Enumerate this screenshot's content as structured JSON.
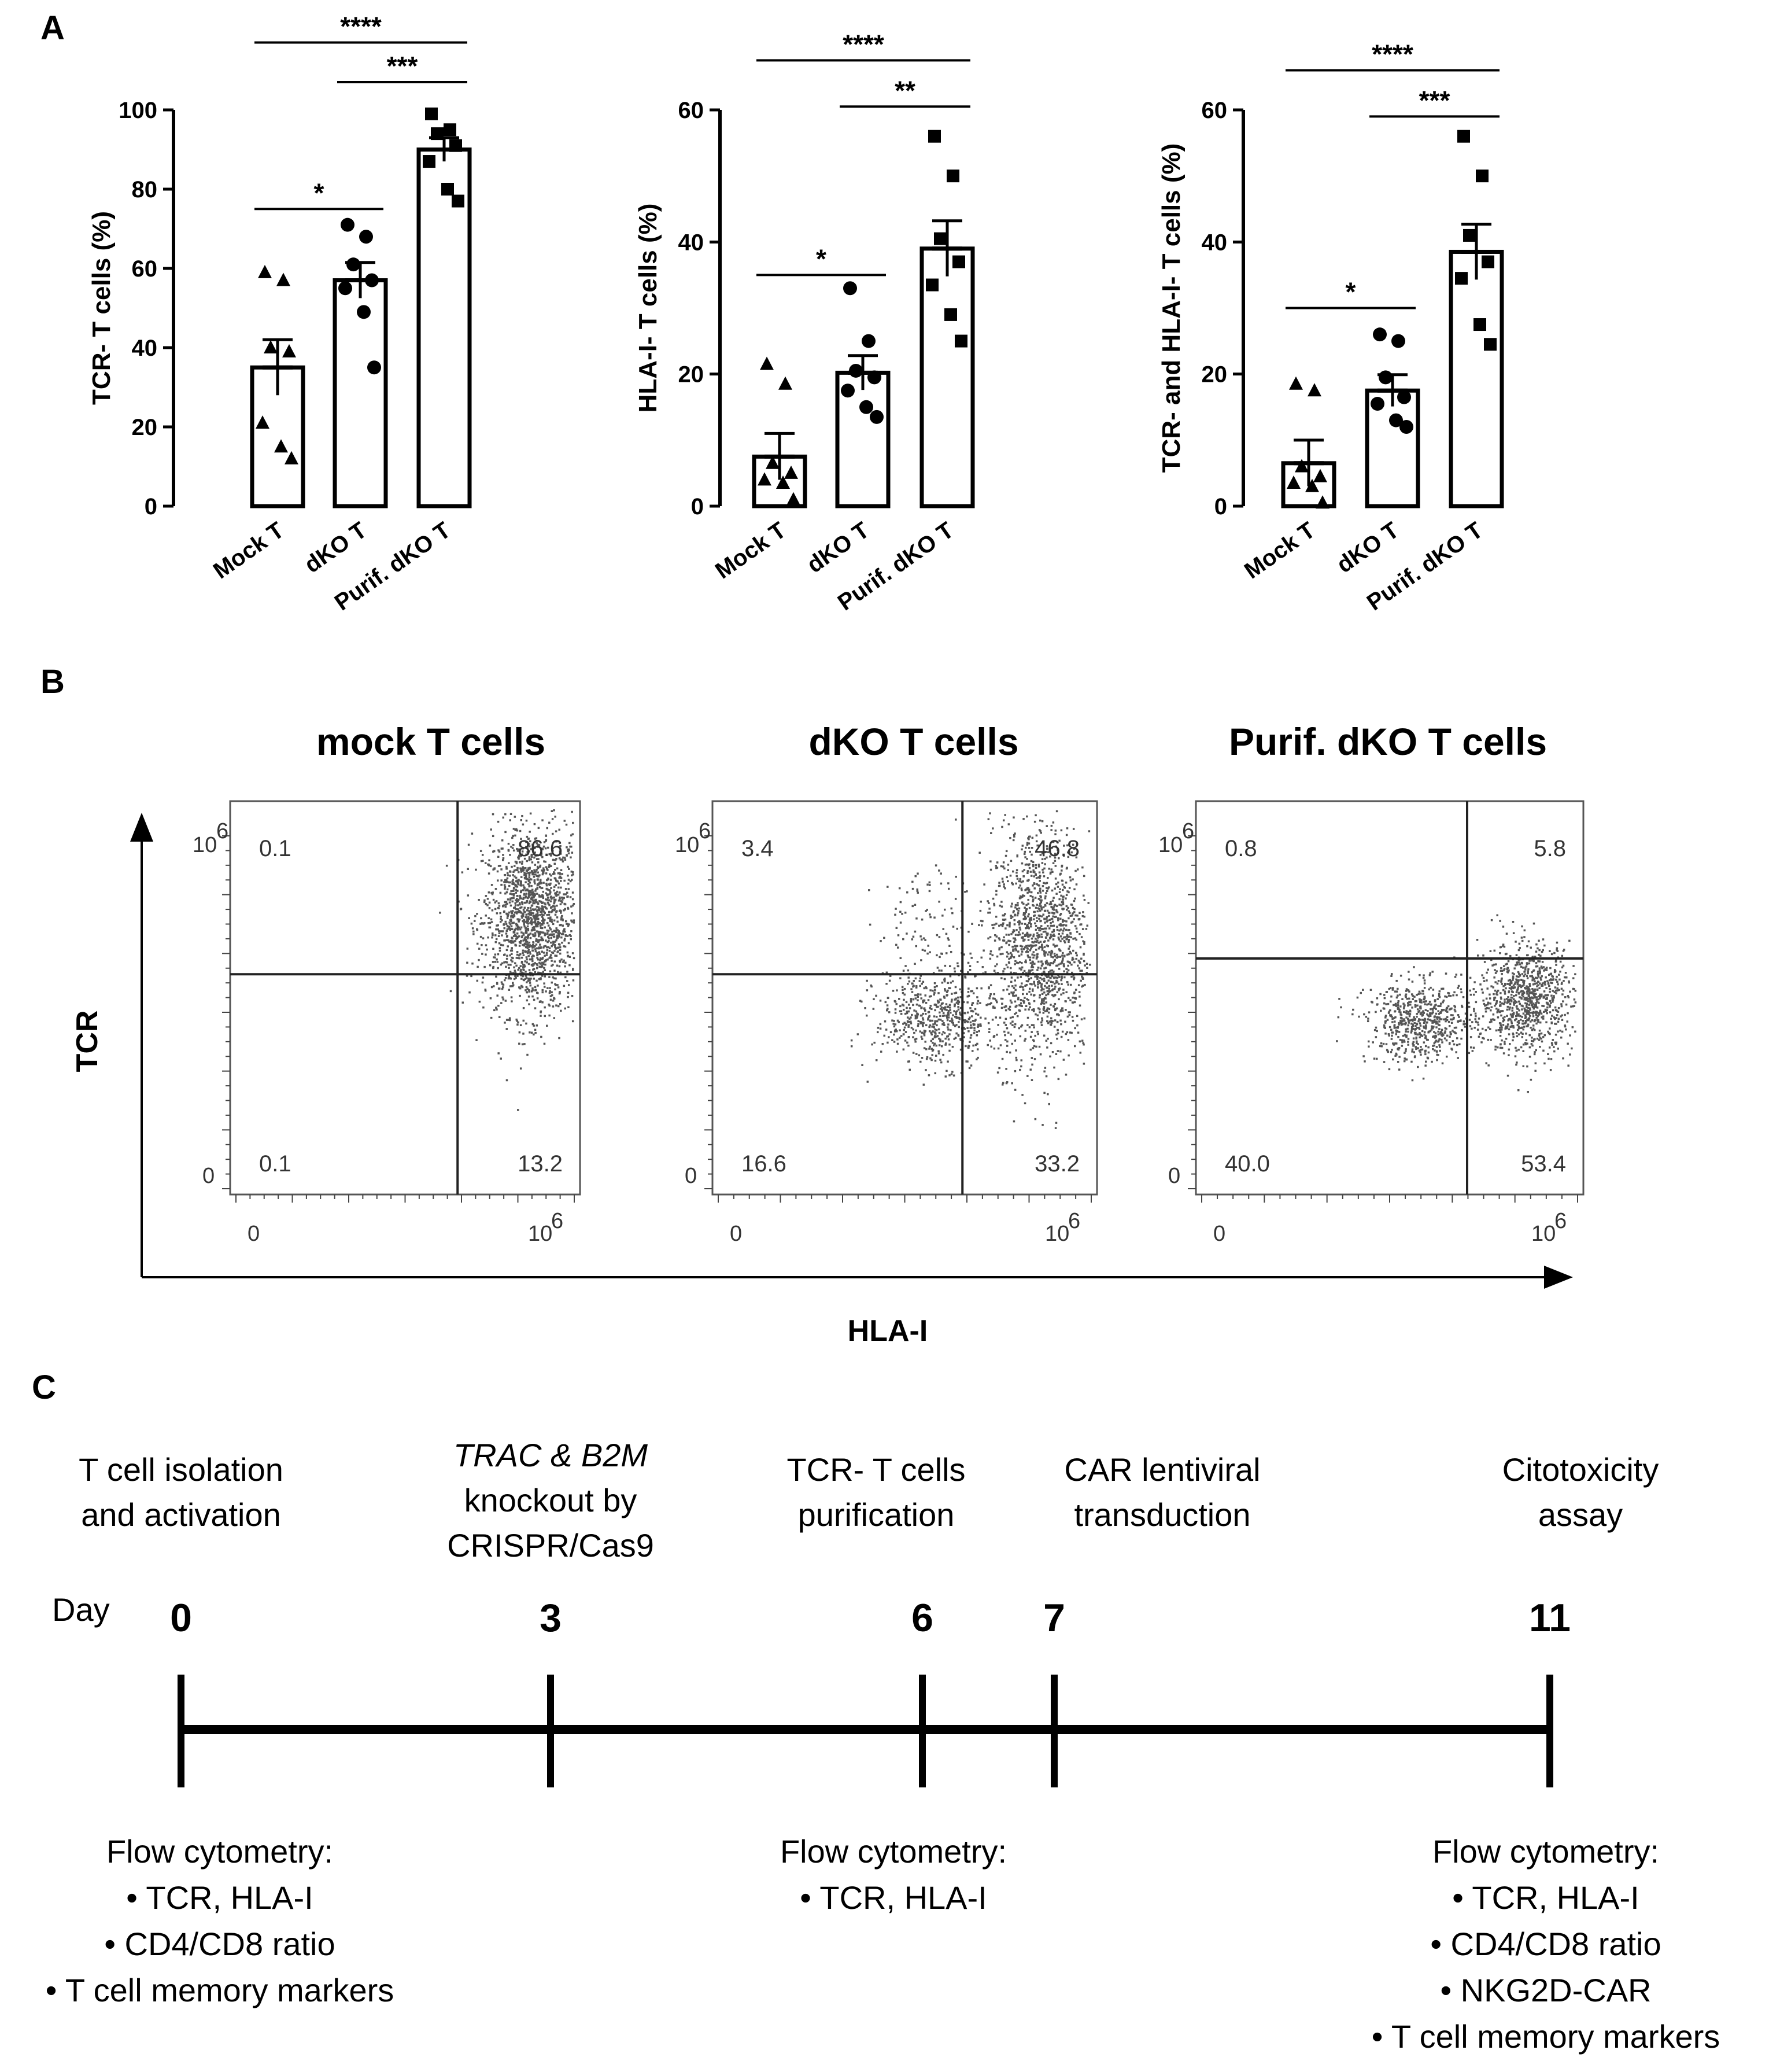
{
  "panels": {
    "A": "A",
    "B": "B",
    "C": "C"
  },
  "chart_data": [
    {
      "type": "bar",
      "title": "",
      "ylabel": "TCR-  T cells (%)",
      "ylim": [
        0,
        100
      ],
      "yticks": [
        0,
        20,
        40,
        60,
        80,
        100
      ],
      "categories": [
        "Mock T",
        "dKO T",
        "Purif. dKO T"
      ],
      "values": [
        35,
        57,
        90
      ],
      "errors": [
        7,
        4.5,
        3
      ],
      "markers": [
        "triangle",
        "circle",
        "square"
      ],
      "points": [
        [
          59,
          57,
          40,
          39,
          21,
          15,
          12
        ],
        [
          71,
          68,
          61,
          57,
          55,
          49,
          35
        ],
        [
          99,
          95,
          94,
          91,
          87,
          80,
          77
        ]
      ],
      "significance": [
        {
          "from": 0,
          "to": 2,
          "label": "****",
          "y": 117
        },
        {
          "from": 1,
          "to": 2,
          "label": "***",
          "y": 107
        },
        {
          "from": 0,
          "to": 1,
          "label": "*",
          "y": 75
        }
      ]
    },
    {
      "type": "bar",
      "title": "",
      "ylabel": "HLA-I- T cells (%)",
      "ylim": [
        0,
        60
      ],
      "yticks": [
        0,
        20,
        40,
        60
      ],
      "categories": [
        "Mock T",
        "dKO T",
        "Purif. dKO T"
      ],
      "values": [
        7.5,
        20.2,
        39
      ],
      "errors": [
        3.5,
        2.6,
        4.2
      ],
      "markers": [
        "triangle",
        "circle",
        "square"
      ],
      "points": [
        [
          21.5,
          18.5,
          6.5,
          5,
          4,
          3.5,
          1
        ],
        [
          33,
          25,
          20.5,
          19.5,
          17.5,
          15,
          13.5
        ],
        [
          56,
          50,
          40.5,
          37,
          33.5,
          29,
          25
        ]
      ],
      "significance": [
        {
          "from": 0,
          "to": 2,
          "label": "****",
          "y": 67.5
        },
        {
          "from": 1,
          "to": 2,
          "label": "**",
          "y": 60.5
        },
        {
          "from": 0,
          "to": 1,
          "label": "*",
          "y": 35
        }
      ]
    },
    {
      "type": "bar",
      "title": "",
      "ylabel": "TCR- and HLA-I- T cells (%)",
      "ylim": [
        0,
        60
      ],
      "yticks": [
        0,
        20,
        40,
        60
      ],
      "categories": [
        "Mock T",
        "dKO T",
        "Purif. dKO T"
      ],
      "values": [
        6.5,
        17.5,
        38.5
      ],
      "errors": [
        3.5,
        2.4,
        4.2
      ],
      "markers": [
        "triangle",
        "circle",
        "square"
      ],
      "points": [
        [
          18.5,
          17.5,
          6,
          4.5,
          3.5,
          3,
          0.5
        ],
        [
          26,
          25,
          19.5,
          16.5,
          15.5,
          13,
          12
        ],
        [
          56,
          50,
          41,
          37,
          34.5,
          27.5,
          24.5
        ]
      ],
      "significance": [
        {
          "from": 0,
          "to": 2,
          "label": "****",
          "y": 66
        },
        {
          "from": 1,
          "to": 2,
          "label": "***",
          "y": 59
        },
        {
          "from": 0,
          "to": 1,
          "label": "*",
          "y": 30
        }
      ]
    }
  ],
  "flow": {
    "y_axis": "TCR",
    "x_axis": "HLA-I",
    "tick_zero": "0",
    "tick_max": "10",
    "tick_max_exp": "6",
    "plots": [
      {
        "title": "mock T cells",
        "q_ul": "0.1",
        "q_ur": "86.6",
        "q_ll": "0.1",
        "q_lr": "13.2",
        "gate_x": 0.65,
        "gate_y": 0.56,
        "clusters": [
          {
            "cx": 0.86,
            "cy": 0.7,
            "sx": 0.07,
            "sy": 0.12,
            "n": 1700
          }
        ]
      },
      {
        "title": "dKO T cells",
        "q_ul": "3.4",
        "q_ur": "46.8",
        "q_ll": "16.6",
        "q_lr": "33.2",
        "gate_x": 0.65,
        "gate_y": 0.56,
        "clusters": [
          {
            "cx": 0.85,
            "cy": 0.64,
            "sx": 0.065,
            "sy": 0.15,
            "n": 1400
          },
          {
            "cx": 0.58,
            "cy": 0.45,
            "sx": 0.08,
            "sy": 0.06,
            "n": 600
          },
          {
            "cx": 0.58,
            "cy": 0.68,
            "sx": 0.08,
            "sy": 0.08,
            "n": 120
          }
        ]
      },
      {
        "title": "Purif. dKO T cells",
        "q_ul": "0.8",
        "q_ur": "5.8",
        "q_ll": "40.0",
        "q_lr": "53.4",
        "gate_x": 0.7,
        "gate_y": 0.6,
        "clusters": [
          {
            "cx": 0.85,
            "cy": 0.5,
            "sx": 0.06,
            "sy": 0.07,
            "n": 900
          },
          {
            "cx": 0.58,
            "cy": 0.44,
            "sx": 0.07,
            "sy": 0.05,
            "n": 650
          }
        ]
      }
    ]
  },
  "timeline": {
    "day_label": "Day",
    "events": [
      {
        "day": "0",
        "top": [
          "T cell isolation",
          "and activation"
        ],
        "bottom": [
          "Flow cytometry:",
          "• TCR, HLA-I",
          "• CD4/CD8 ratio",
          "• T cell memory markers"
        ]
      },
      {
        "day": "3",
        "top_italic": "TRAC & B2M",
        "top": [
          "knockout by",
          "CRISPR/Cas9"
        ],
        "bottom": []
      },
      {
        "day": "6",
        "top": [
          "TCR- T cells",
          "purification"
        ],
        "bottom": [
          "Flow cytometry:",
          "• TCR, HLA-I"
        ]
      },
      {
        "day": "7",
        "top": [
          "CAR lentiviral",
          "transduction"
        ],
        "bottom": []
      },
      {
        "day": "11",
        "top": [
          "Citotoxicity",
          "assay"
        ],
        "bottom": [
          "Flow cytometry:",
          "• TCR, HLA-I",
          "• CD4/CD8 ratio",
          "• NKG2D-CAR",
          "• T cell memory markers"
        ]
      }
    ]
  }
}
